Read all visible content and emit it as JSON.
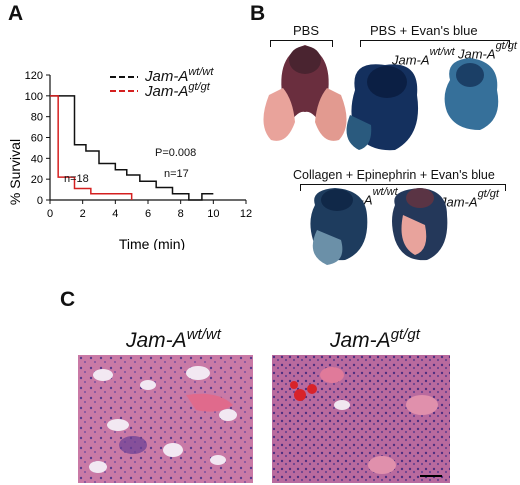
{
  "panels": {
    "a": "A",
    "b": "B",
    "c": "C"
  },
  "legend": {
    "wt": {
      "base": "Jam-A",
      "sup": "wt/wt",
      "color": "#111111"
    },
    "gt": {
      "base": "Jam-A",
      "sup": "gt/gt",
      "color": "#d42020"
    }
  },
  "annotations": {
    "p_value": "P=0.008",
    "n_gt": "n=18",
    "n_wt": "n=17"
  },
  "chart_data": {
    "type": "line",
    "xlabel": "Time (min)",
    "ylabel": "% Survival",
    "xlim": [
      0,
      12
    ],
    "ylim": [
      0,
      120
    ],
    "x_ticks": [
      "0",
      "2",
      "4",
      "6",
      "8",
      "10",
      "12"
    ],
    "y_ticks": [
      "0",
      "20",
      "40",
      "60",
      "80",
      "100",
      "120"
    ],
    "step": true,
    "series": [
      {
        "name": "Jam-A wt/wt",
        "color": "#111111",
        "x": [
          0,
          1.5,
          2.2,
          3.0,
          4.0,
          4.7,
          5.5,
          6.5,
          7.5,
          8.5,
          9.3,
          10.0
        ],
        "y": [
          100,
          53,
          47,
          35,
          29,
          24,
          18,
          12,
          6,
          0,
          6,
          6
        ]
      },
      {
        "name": "Jam-A gt/gt",
        "color": "#d42020",
        "x": [
          0,
          0.5,
          1.5,
          2.5,
          5.0
        ],
        "y": [
          100,
          22,
          11,
          6,
          0
        ]
      }
    ]
  },
  "panel_b": {
    "pbs": "PBS",
    "pbs_evans": "PBS + Evan's blue",
    "collagen": "Collagen + Epinephrin + Evan's blue",
    "wt": {
      "base": "Jam-A",
      "sup": "wt/wt"
    },
    "gt": {
      "base": "Jam-A",
      "sup": "gt/gt"
    }
  },
  "panel_c": {
    "wt": {
      "base": "Jam-A",
      "sup": "wt/wt"
    },
    "gt": {
      "base": "Jam-A",
      "sup": "gt/gt"
    }
  }
}
